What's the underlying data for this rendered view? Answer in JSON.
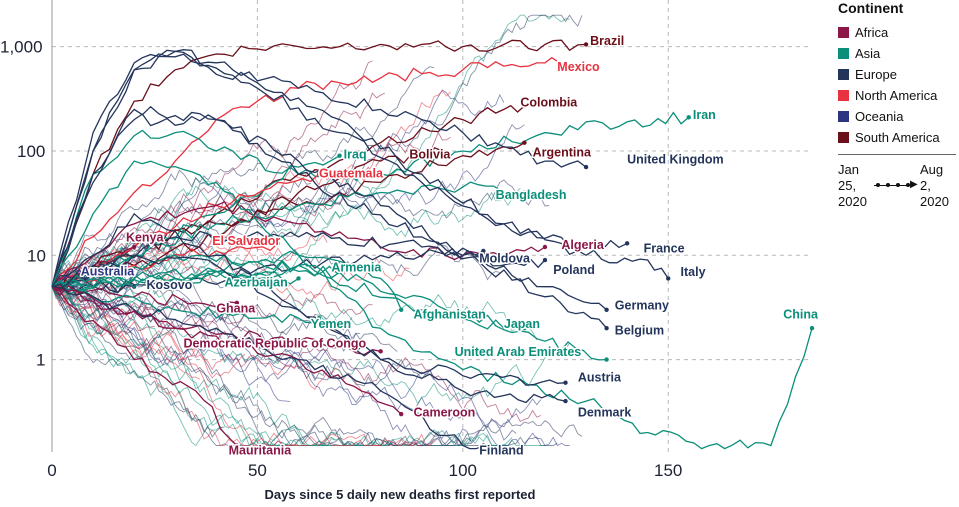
{
  "chart_data": {
    "type": "line",
    "title": "",
    "xlabel": "Days since 5 daily new deaths first reported",
    "ylabel": "",
    "x_ticks": [
      0,
      50,
      100,
      150
    ],
    "x_tick_labels": [
      "0",
      "50",
      "100",
      "150"
    ],
    "xlim": [
      0,
      185
    ],
    "y_scale": "log",
    "y_ticks": [
      1,
      10,
      100,
      1000
    ],
    "y_tick_labels": [
      "1",
      "10",
      "100",
      "1,000"
    ],
    "ylim": [
      0.13,
      2800
    ],
    "grid": "dashed",
    "legend": {
      "title": "Continent",
      "position": "right",
      "items": [
        {
          "name": "Africa",
          "color": "#8a1747"
        },
        {
          "name": "Asia",
          "color": "#0b8f7a"
        },
        {
          "name": "Europe",
          "color": "#24355c"
        },
        {
          "name": "North America",
          "color": "#e8323f"
        },
        {
          "name": "Oceania",
          "color": "#2c3580"
        },
        {
          "name": "South America",
          "color": "#6b0f1a"
        }
      ]
    },
    "date_range": {
      "start": "Jan 25, 2020",
      "end": "Aug 2, 2020"
    },
    "series": [
      {
        "name": "Brazil",
        "continent": "South America",
        "x": [
          0,
          10,
          20,
          30,
          40,
          50,
          60,
          70,
          80,
          90,
          100,
          110,
          120,
          130
        ],
        "y": [
          5,
          60,
          300,
          600,
          850,
          950,
          1000,
          1000,
          1050,
          1050,
          1000,
          1050,
          1050,
          1050
        ]
      },
      {
        "name": "Mexico",
        "continent": "North America",
        "x": [
          0,
          10,
          20,
          30,
          40,
          50,
          60,
          70,
          80,
          90,
          100,
          110,
          120,
          125
        ],
        "y": [
          5,
          15,
          40,
          80,
          200,
          300,
          400,
          450,
          500,
          550,
          600,
          650,
          700,
          650
        ]
      },
      {
        "name": "Colombia",
        "continent": "South America",
        "x": [
          0,
          20,
          40,
          60,
          80,
          100,
          110,
          115
        ],
        "y": [
          5,
          10,
          25,
          60,
          120,
          200,
          250,
          270
        ]
      },
      {
        "name": "Iran",
        "continent": "Asia",
        "x": [
          0,
          10,
          20,
          30,
          40,
          60,
          80,
          100,
          120,
          140,
          155
        ],
        "y": [
          5,
          60,
          140,
          150,
          100,
          60,
          60,
          100,
          150,
          190,
          210
        ]
      },
      {
        "name": "Argentina",
        "continent": "South America",
        "x": [
          0,
          20,
          40,
          60,
          80,
          100,
          110,
          115
        ],
        "y": [
          5,
          12,
          20,
          30,
          50,
          90,
          110,
          120
        ]
      },
      {
        "name": "United Kingdom",
        "continent": "Europe",
        "x": [
          0,
          10,
          20,
          30,
          40,
          60,
          80,
          100,
          120,
          130
        ],
        "y": [
          5,
          100,
          600,
          900,
          700,
          400,
          250,
          150,
          80,
          70
        ]
      },
      {
        "name": "Bolivia",
        "continent": "South America",
        "x": [
          0,
          20,
          40,
          60,
          80,
          95
        ],
        "y": [
          5,
          8,
          15,
          40,
          80,
          100
        ]
      },
      {
        "name": "Iraq",
        "continent": "Asia",
        "x": [
          0,
          20,
          40,
          60,
          70
        ],
        "y": [
          5,
          10,
          25,
          70,
          90
        ]
      },
      {
        "name": "Guatemala",
        "continent": "North America",
        "x": [
          0,
          20,
          40,
          55,
          65
        ],
        "y": [
          5,
          12,
          30,
          50,
          60
        ]
      },
      {
        "name": "Bangladesh",
        "continent": "Asia",
        "x": [
          0,
          20,
          40,
          60,
          80,
          100,
          115
        ],
        "y": [
          5,
          10,
          20,
          30,
          40,
          45,
          40
        ]
      },
      {
        "name": "Kenya",
        "continent": "Africa",
        "x": [
          0,
          10,
          20
        ],
        "y": [
          5,
          8,
          12
        ]
      },
      {
        "name": "El Salvador",
        "continent": "North America",
        "x": [
          0,
          20,
          40,
          55
        ],
        "y": [
          5,
          8,
          11,
          13
        ]
      },
      {
        "name": "Algeria",
        "continent": "Africa",
        "x": [
          0,
          20,
          40,
          60,
          80,
          100,
          115,
          120
        ],
        "y": [
          5,
          20,
          30,
          20,
          12,
          10,
          11,
          12
        ]
      },
      {
        "name": "France",
        "continent": "Europe",
        "x": [
          0,
          10,
          20,
          30,
          50,
          70,
          90,
          110,
          130,
          140
        ],
        "y": [
          5,
          100,
          600,
          900,
          400,
          150,
          50,
          20,
          12,
          13
        ]
      },
      {
        "name": "Italy",
        "continent": "Europe",
        "x": [
          0,
          10,
          20,
          30,
          50,
          70,
          90,
          110,
          130,
          145,
          150
        ],
        "y": [
          5,
          150,
          700,
          800,
          450,
          200,
          60,
          20,
          10,
          9,
          6
        ]
      },
      {
        "name": "Moldova",
        "continent": "Europe",
        "x": [
          0,
          30,
          60,
          90,
          105
        ],
        "y": [
          5,
          5,
          8,
          10,
          11
        ]
      },
      {
        "name": "Poland",
        "continent": "Europe",
        "x": [
          0,
          30,
          60,
          90,
          115,
          120
        ],
        "y": [
          5,
          15,
          15,
          12,
          8,
          9
        ]
      },
      {
        "name": "Australia",
        "continent": "Oceania",
        "x": [
          0,
          5,
          10
        ],
        "y": [
          5,
          6,
          7
        ]
      },
      {
        "name": "Armenia",
        "continent": "Asia",
        "x": [
          0,
          30,
          60,
          75
        ],
        "y": [
          5,
          6,
          7,
          8
        ]
      },
      {
        "name": "Kosovo",
        "continent": "Europe",
        "x": [
          0,
          10,
          20
        ],
        "y": [
          5,
          5,
          5
        ]
      },
      {
        "name": "Azerbaijan",
        "continent": "Asia",
        "x": [
          0,
          20,
          40,
          60
        ],
        "y": [
          5,
          6,
          7,
          6
        ]
      },
      {
        "name": "Germany",
        "continent": "Europe",
        "x": [
          0,
          10,
          20,
          40,
          60,
          90,
          120,
          135
        ],
        "y": [
          5,
          60,
          200,
          200,
          60,
          15,
          5,
          3
        ]
      },
      {
        "name": "Ghana",
        "continent": "Africa",
        "x": [
          0,
          20,
          35,
          45
        ],
        "y": [
          5,
          4,
          3.5,
          3.5
        ]
      },
      {
        "name": "Afghanistan",
        "continent": "Asia",
        "x": [
          0,
          30,
          60,
          80,
          85
        ],
        "y": [
          5,
          6,
          10,
          6,
          3
        ]
      },
      {
        "name": "Yemen",
        "continent": "Asia",
        "x": [
          0,
          30,
          60,
          65
        ],
        "y": [
          5,
          3,
          2.5,
          2.5
        ]
      },
      {
        "name": "Japan",
        "continent": "Asia",
        "x": [
          0,
          30,
          60,
          90,
          110,
          115
        ],
        "y": [
          5,
          10,
          8,
          3,
          2,
          2
        ]
      },
      {
        "name": "Belgium",
        "continent": "Europe",
        "x": [
          0,
          10,
          20,
          40,
          60,
          80,
          100,
          120,
          135
        ],
        "y": [
          5,
          50,
          250,
          200,
          80,
          30,
          10,
          4,
          2
        ]
      },
      {
        "name": "Democratic Republic of Congo",
        "continent": "Africa",
        "x": [
          0,
          30,
          60,
          80
        ],
        "y": [
          5,
          2,
          1.5,
          1.2
        ]
      },
      {
        "name": "United Arab Emirates",
        "continent": "Asia",
        "x": [
          0,
          30,
          60,
          90,
          120,
          135
        ],
        "y": [
          5,
          6,
          8,
          4,
          1.5,
          1
        ]
      },
      {
        "name": "China",
        "continent": "Asia",
        "x": [
          0,
          10,
          20,
          40,
          60,
          80,
          100,
          130,
          145,
          160,
          175,
          185
        ],
        "y": [
          5,
          25,
          80,
          50,
          10,
          2,
          0.8,
          0.4,
          0.2,
          0.15,
          0.15,
          2
        ]
      },
      {
        "name": "Austria",
        "continent": "Europe",
        "x": [
          0,
          10,
          20,
          40,
          60,
          80,
          100,
          125
        ],
        "y": [
          5,
          10,
          25,
          10,
          3,
          1,
          0.7,
          0.6
        ]
      },
      {
        "name": "Cameroon",
        "continent": "Africa",
        "x": [
          0,
          30,
          60,
          85
        ],
        "y": [
          5,
          2,
          1,
          0.3
        ]
      },
      {
        "name": "Denmark",
        "continent": "Europe",
        "x": [
          0,
          20,
          40,
          60,
          80,
          100,
          125
        ],
        "y": [
          5,
          10,
          8,
          3,
          1,
          0.5,
          0.4
        ]
      },
      {
        "name": "Mauritania",
        "continent": "Africa",
        "x": [
          0,
          20,
          35,
          45
        ],
        "y": [
          5,
          1,
          0.5,
          0.15
        ]
      },
      {
        "name": "Finland",
        "continent": "Europe",
        "x": [
          0,
          20,
          40,
          60,
          80,
          100,
          105
        ],
        "y": [
          5,
          3,
          2,
          1,
          0.5,
          0.15,
          0.15
        ]
      }
    ],
    "labels": [
      {
        "text": "Brazil",
        "continent": "South America",
        "x": 131,
        "y": 1130
      },
      {
        "text": "Mexico",
        "continent": "North America",
        "x": 123,
        "y": 640
      },
      {
        "text": "Colombia",
        "continent": "South America",
        "x": 114,
        "y": 290
      },
      {
        "text": "Iran",
        "continent": "Asia",
        "x": 156,
        "y": 220
      },
      {
        "text": "Argentina",
        "continent": "South America",
        "x": 117,
        "y": 97
      },
      {
        "text": "United Kingdom",
        "continent": "Europe",
        "x": 140,
        "y": 83
      },
      {
        "text": "Bolivia",
        "continent": "South America",
        "x": 87,
        "y": 92
      },
      {
        "text": "Iraq",
        "continent": "Asia",
        "x": 71,
        "y": 92
      },
      {
        "text": "Guatemala",
        "continent": "North America",
        "x": 65,
        "y": 61
      },
      {
        "text": "Bangladesh",
        "continent": "Asia",
        "x": 108,
        "y": 38
      },
      {
        "text": "Kenya",
        "continent": "Africa",
        "x": 18,
        "y": 14.8
      },
      {
        "text": "El Salvador",
        "continent": "North America",
        "x": 39,
        "y": 13.7
      },
      {
        "text": "Algeria",
        "continent": "Africa",
        "x": 124,
        "y": 12.5
      },
      {
        "text": "France",
        "continent": "Europe",
        "x": 144,
        "y": 11.6
      },
      {
        "text": "Moldova",
        "continent": "Europe",
        "x": 104,
        "y": 9.3
      },
      {
        "text": "Italy",
        "continent": "Europe",
        "x": 153,
        "y": 6.9
      },
      {
        "text": "Poland",
        "continent": "Europe",
        "x": 122,
        "y": 7.2
      },
      {
        "text": "Australia",
        "continent": "Oceania",
        "x": 7,
        "y": 7.0
      },
      {
        "text": "Armenia",
        "continent": "Asia",
        "x": 68,
        "y": 7.6
      },
      {
        "text": "Kosovo",
        "continent": "Europe",
        "x": 23,
        "y": 5.2
      },
      {
        "text": "Azerbaijan",
        "continent": "Asia",
        "x": 42,
        "y": 5.5
      },
      {
        "text": "Germany",
        "continent": "Europe",
        "x": 137,
        "y": 3.3
      },
      {
        "text": "Ghana",
        "continent": "Africa",
        "x": 40,
        "y": 3.1
      },
      {
        "text": "Afghanistan",
        "continent": "Asia",
        "x": 88,
        "y": 2.7
      },
      {
        "text": "Yemen",
        "continent": "Asia",
        "x": 63,
        "y": 2.2
      },
      {
        "text": "Japan",
        "continent": "Asia",
        "x": 110,
        "y": 2.2
      },
      {
        "text": "China",
        "continent": "Asia",
        "x": 178,
        "y": 2.7
      },
      {
        "text": "Belgium",
        "continent": "Europe",
        "x": 137,
        "y": 1.9
      },
      {
        "text": "Democratic Republic of Congo",
        "continent": "Africa",
        "x": 32,
        "y": 1.43
      },
      {
        "text": "United Arab Emirates",
        "continent": "Asia",
        "x": 98,
        "y": 1.18
      },
      {
        "text": "Austria",
        "continent": "Europe",
        "x": 128,
        "y": 0.67
      },
      {
        "text": "Cameroon",
        "continent": "Africa",
        "x": 88,
        "y": 0.31
      },
      {
        "text": "Denmark",
        "continent": "Europe",
        "x": 128,
        "y": 0.31
      },
      {
        "text": "Mauritania",
        "continent": "Africa",
        "x": 43,
        "y": 0.135
      },
      {
        "text": "Finland",
        "continent": "Europe",
        "x": 104,
        "y": 0.135
      }
    ]
  }
}
